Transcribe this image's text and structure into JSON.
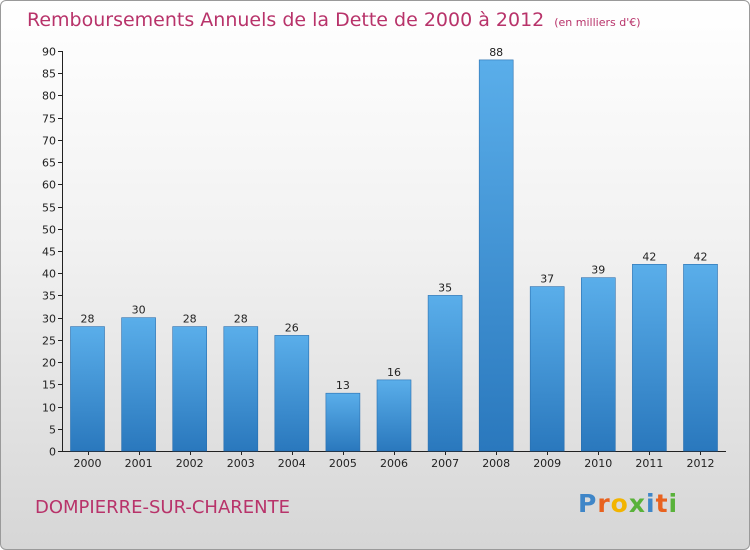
{
  "chart_data": {
    "type": "bar",
    "title": "Remboursements Annuels de la Dette de 2000 à 2012",
    "unit": "(en milliers d'€)",
    "categories": [
      "2000",
      "2001",
      "2002",
      "2003",
      "2004",
      "2005",
      "2006",
      "2007",
      "2008",
      "2009",
      "2010",
      "2011",
      "2012"
    ],
    "values": [
      28,
      30,
      28,
      28,
      26,
      13,
      16,
      35,
      88,
      37,
      39,
      42,
      42
    ],
    "ylim": [
      0,
      90
    ],
    "yticks": [
      0,
      5,
      10,
      15,
      20,
      25,
      30,
      35,
      40,
      45,
      50,
      55,
      60,
      65,
      70,
      75,
      80,
      85,
      90
    ],
    "grid": false,
    "xlabel": "",
    "ylabel": "",
    "bar_color": "#3b92d6"
  },
  "commune": "DOMPIERRE-SUR-CHARENTE",
  "brand": {
    "letters": [
      "P",
      "r",
      "o",
      "x",
      "i",
      "t",
      "i"
    ],
    "colors": [
      "#3f86c8",
      "#e8621f",
      "#f2b400",
      "#59b23a",
      "#3f86c8",
      "#e8621f",
      "#59b23a"
    ]
  }
}
